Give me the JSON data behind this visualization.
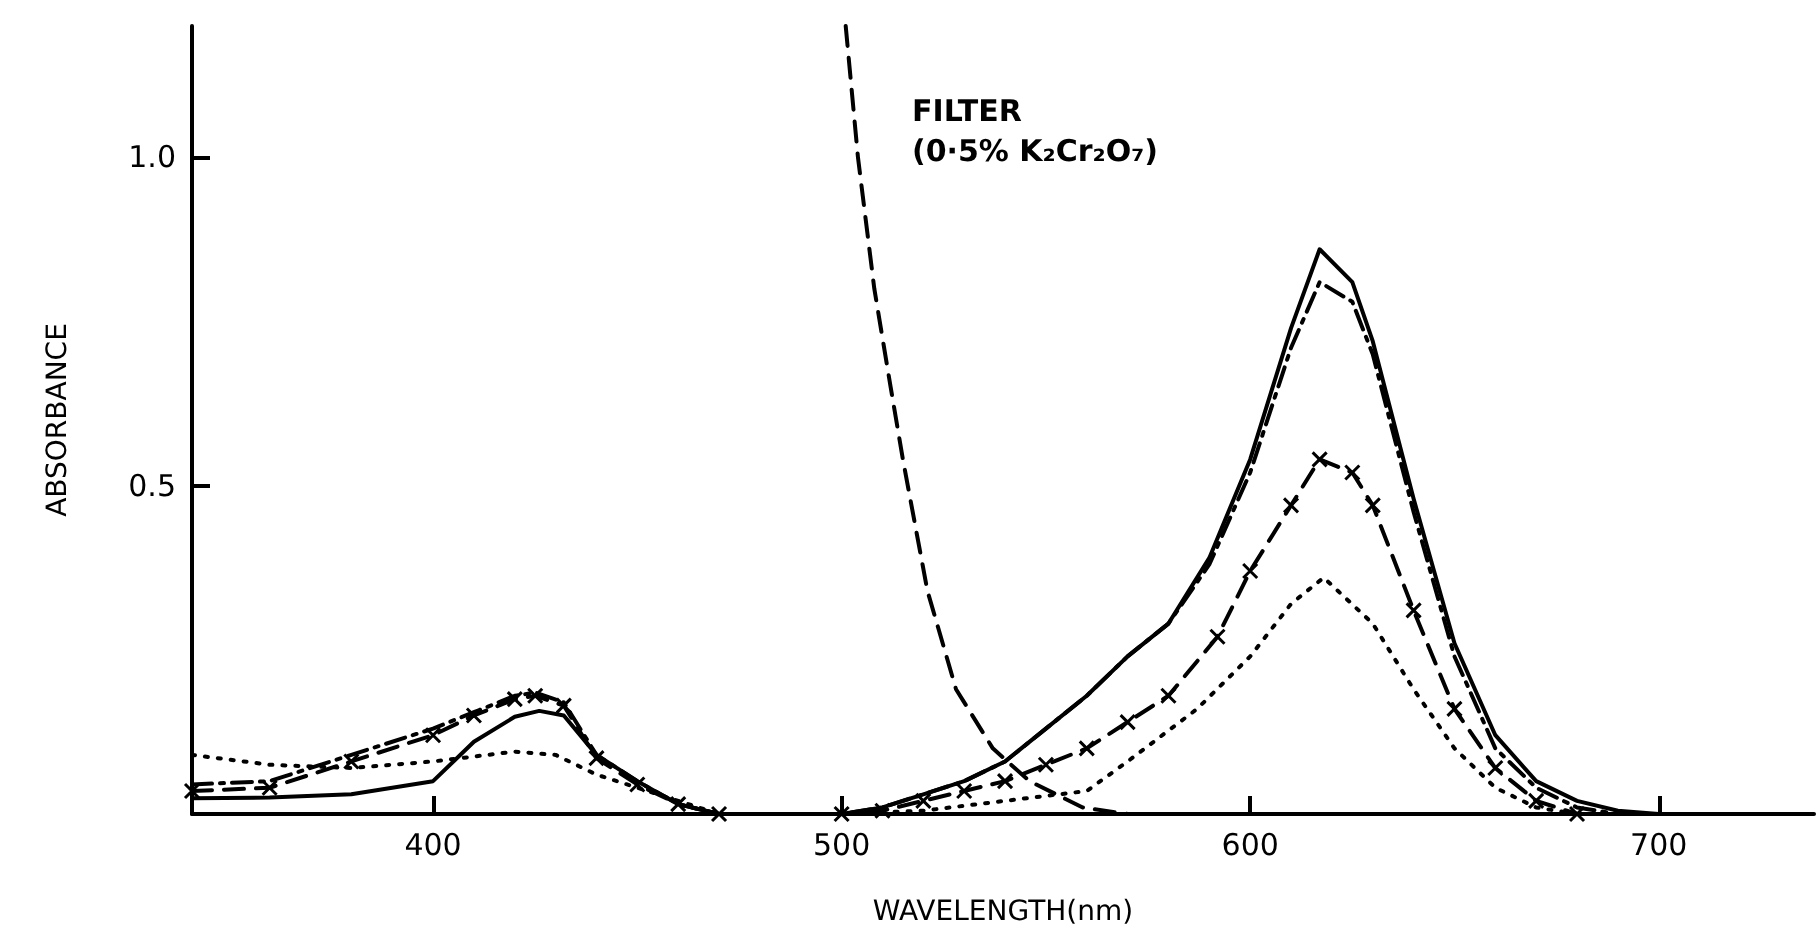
{
  "chart_data": {
    "type": "line",
    "xlabel": "WAVELENGTH(nm)",
    "ylabel": "ABSORBANCE",
    "xlim": [
      341,
      738
    ],
    "ylim": [
      0,
      1.2
    ],
    "xticks": [
      400,
      500,
      600,
      700
    ],
    "yticks": [
      0.5,
      {
        "value": 1,
        "label": "1.0"
      }
    ],
    "grid": false,
    "marker": "none",
    "annotations": [
      "FILTER",
      "(0·5% K₂Cr₂O₇)"
    ],
    "series": [
      {
        "color": "#000000",
        "line_style": "solid",
        "x": [
          341,
          360,
          380,
          400,
          410,
          420,
          426,
          432,
          440,
          450,
          460,
          470,
          500,
          510,
          520,
          530,
          540,
          550,
          560,
          570,
          580,
          590,
          600,
          610,
          617,
          625,
          630,
          640,
          650,
          660,
          670,
          680,
          690,
          700
        ],
        "values": [
          0.024,
          0.025,
          0.03,
          0.05,
          0.11,
          0.148,
          0.157,
          0.15,
          0.09,
          0.05,
          0.015,
          0,
          0,
          0.01,
          0.03,
          0.05,
          0.08,
          0.13,
          0.18,
          0.24,
          0.29,
          0.39,
          0.54,
          0.74,
          0.86,
          0.81,
          0.72,
          0.48,
          0.26,
          0.12,
          0.05,
          0.02,
          0.005,
          0
        ]
      },
      {
        "color": "#000000",
        "line_style": "dashdot",
        "x": [
          341,
          360,
          380,
          400,
          410,
          420,
          425,
          432,
          440,
          450,
          460,
          470,
          500,
          510,
          520,
          530,
          540,
          550,
          560,
          570,
          580,
          590,
          600,
          610,
          617,
          625,
          630,
          640,
          650,
          660,
          670,
          680,
          690
        ],
        "values": [
          0.045,
          0.05,
          0.09,
          0.13,
          0.155,
          0.18,
          0.185,
          0.17,
          0.09,
          0.05,
          0.015,
          0,
          0,
          0.01,
          0.03,
          0.05,
          0.08,
          0.13,
          0.18,
          0.24,
          0.29,
          0.38,
          0.52,
          0.71,
          0.81,
          0.78,
          0.7,
          0.46,
          0.24,
          0.1,
          0.04,
          0.01,
          0
        ]
      },
      {
        "color": "#000000",
        "line_style": "dashed",
        "marker": "cross",
        "x": [
          341,
          360,
          380,
          400,
          410,
          420,
          425,
          432,
          440,
          450,
          460,
          470,
          500,
          510,
          520,
          530,
          540,
          550,
          560,
          570,
          580,
          592,
          600,
          610,
          617,
          625,
          630,
          640,
          650,
          660,
          670,
          680
        ],
        "values": [
          0.035,
          0.04,
          0.08,
          0.12,
          0.15,
          0.175,
          0.18,
          0.165,
          0.085,
          0.045,
          0.015,
          0,
          0,
          0.005,
          0.02,
          0.035,
          0.05,
          0.075,
          0.1,
          0.14,
          0.18,
          0.27,
          0.37,
          0.47,
          0.54,
          0.52,
          0.47,
          0.31,
          0.16,
          0.07,
          0.02,
          0
        ]
      },
      {
        "color": "#000000",
        "line_style": "dotted",
        "x": [
          341,
          360,
          380,
          400,
          420,
          430,
          440,
          450,
          460,
          470,
          500,
          520,
          540,
          560,
          570,
          587,
          600,
          610,
          618,
          630,
          640,
          650,
          660,
          670,
          680
        ],
        "values": [
          0.09,
          0.075,
          0.07,
          0.08,
          0.095,
          0.09,
          0.06,
          0.04,
          0.02,
          0,
          0,
          0.005,
          0.02,
          0.035,
          0.08,
          0.16,
          0.24,
          0.32,
          0.36,
          0.29,
          0.19,
          0.1,
          0.04,
          0.01,
          0
        ]
      },
      {
        "color": "#000000",
        "line_style": "dashed",
        "x": [
          501,
          504,
          508,
          512,
          515,
          521,
          528,
          537,
          546,
          559,
          570
        ],
        "values": [
          1.2,
          1.0,
          0.8,
          0.65,
          0.54,
          0.34,
          0.19,
          0.1,
          0.05,
          0.01,
          0
        ]
      }
    ]
  }
}
